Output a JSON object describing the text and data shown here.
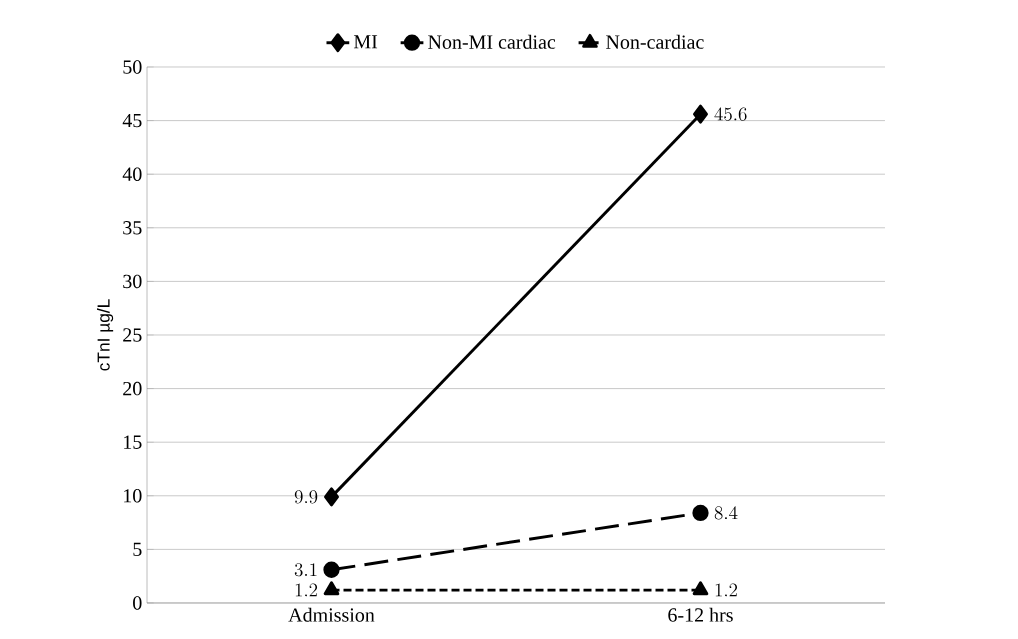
{
  "chart_data": {
    "type": "line",
    "ylabel": "cTnI µg/L",
    "categories": [
      "Admission",
      "6-12 hrs"
    ],
    "series": [
      {
        "name": "MI",
        "color": "#000000",
        "values": [
          9.9,
          45.6
        ],
        "marker": "diamond",
        "line_style": "solid"
      },
      {
        "name": "Non-MI cardiac",
        "color": "#000000",
        "values": [
          3.1,
          8.4
        ],
        "marker": "circle",
        "line_style": "dashed"
      },
      {
        "name": "Non-cardiac",
        "color": "#000000",
        "values": [
          1.2,
          1.2
        ],
        "marker": "triangle",
        "line_style": "dotted"
      }
    ],
    "ylim": [
      0,
      50
    ],
    "yticks": [
      0,
      5,
      10,
      15,
      20,
      25,
      30,
      35,
      40,
      45,
      50
    ],
    "grid": "y",
    "legend": "top",
    "data_labels": true
  }
}
